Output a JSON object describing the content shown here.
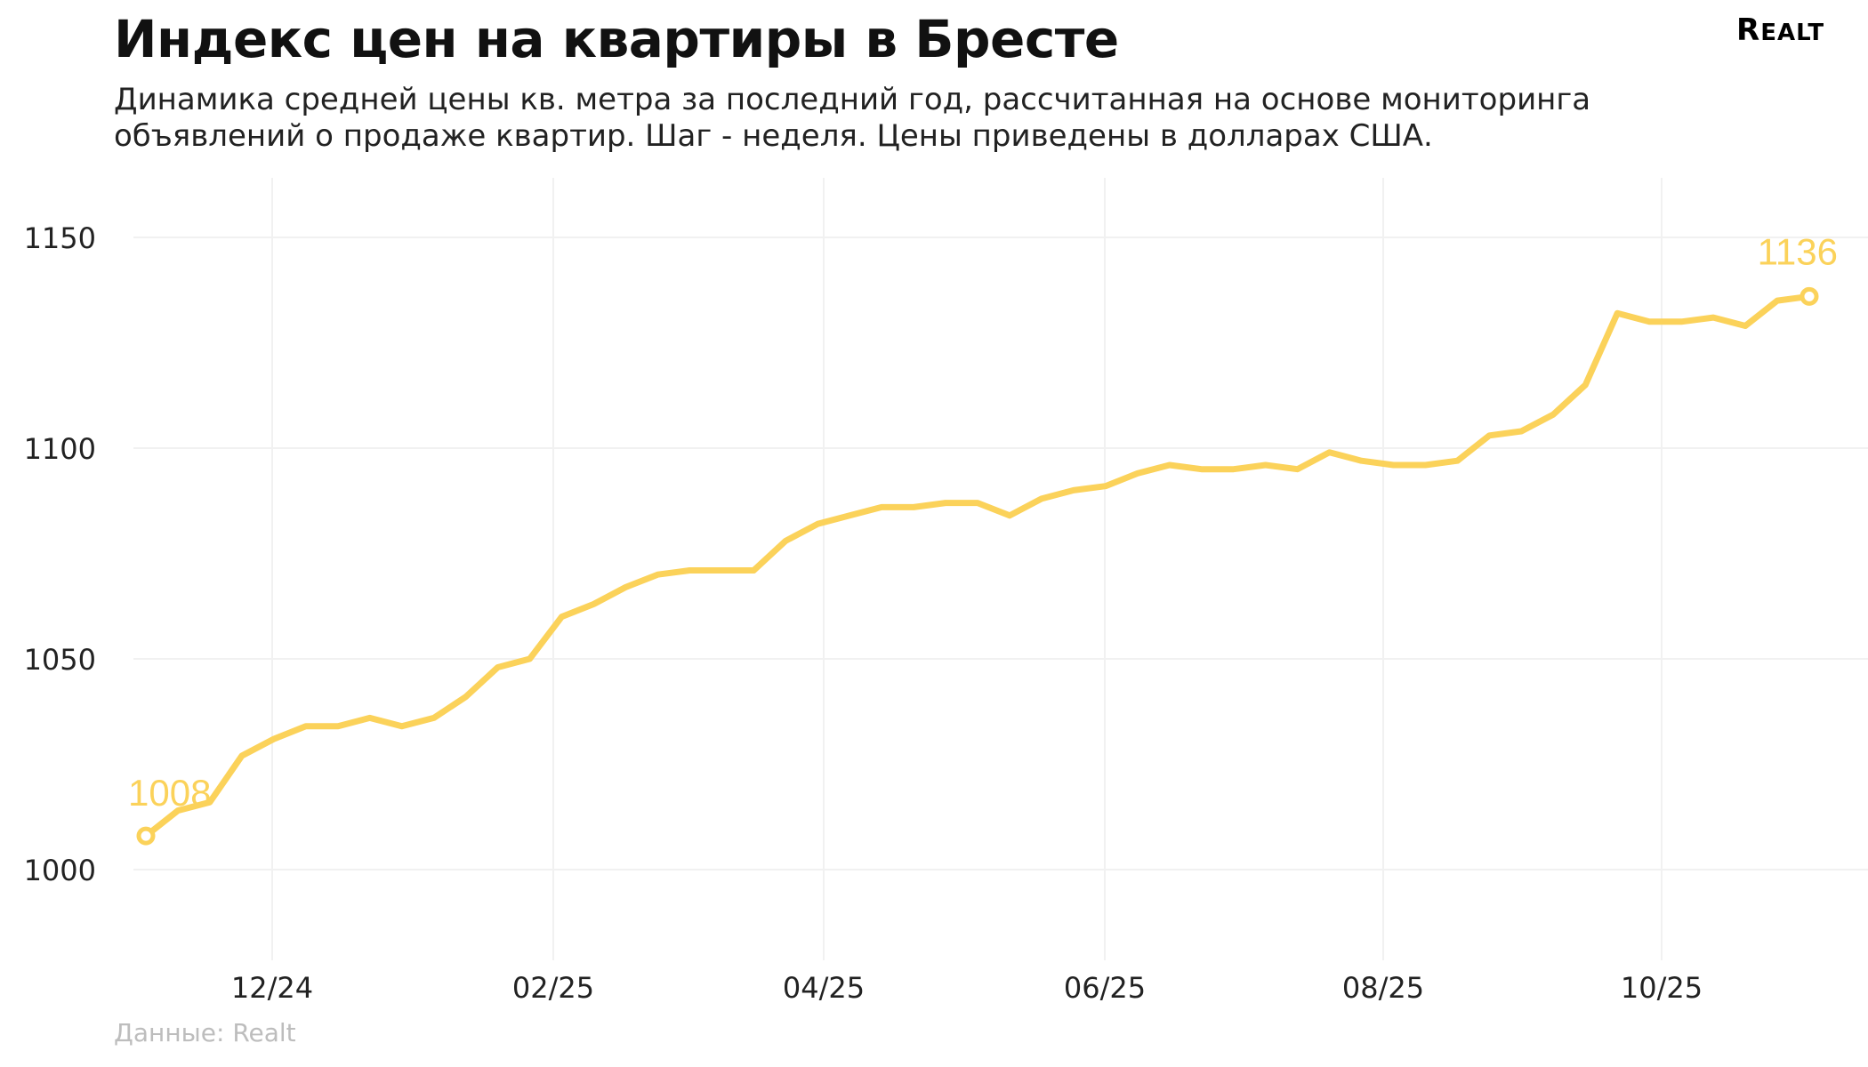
{
  "header": {
    "title": "Индекс цен на квартиры в Бресте",
    "subtitle": "Динамика средней цены кв. метра за последний год, рассчитанная на основе мониторинга объявлений о продаже квартир. Шаг - неделя. Цены приведены в долларах США.",
    "logo_text": "REALT"
  },
  "footer": {
    "source": "Данные: Realt"
  },
  "chart_data": {
    "type": "line",
    "title": "Индекс цен на квартиры в Бресте",
    "xlabel": "",
    "ylabel": "",
    "ylim": [
      985,
      1165
    ],
    "yticks": [
      1000,
      1050,
      1100,
      1150
    ],
    "grid": true,
    "legend": "none",
    "line_color": "#fbd25a",
    "x_tick_labels": [
      "12/24",
      "02/25",
      "04/25",
      "06/25",
      "08/25",
      "10/25"
    ],
    "series": [
      {
        "values": [
          1008,
          1014,
          1016,
          1027,
          1031,
          1034,
          1034,
          1036,
          1034,
          1036,
          1041,
          1048,
          1050,
          1060,
          1063,
          1067,
          1070,
          1071,
          1071,
          1071,
          1078,
          1082,
          1084,
          1086,
          1086,
          1087,
          1087,
          1084,
          1088,
          1090,
          1091,
          1094,
          1096,
          1095,
          1095,
          1096,
          1095,
          1099,
          1097,
          1096,
          1096,
          1097,
          1103,
          1104,
          1108,
          1115,
          1132,
          1130,
          1130,
          1131,
          1129,
          1135,
          1136
        ]
      }
    ],
    "annotations": [
      {
        "text": "1008",
        "point_index": 0
      },
      {
        "text": "1136",
        "point_index": 52
      }
    ]
  }
}
